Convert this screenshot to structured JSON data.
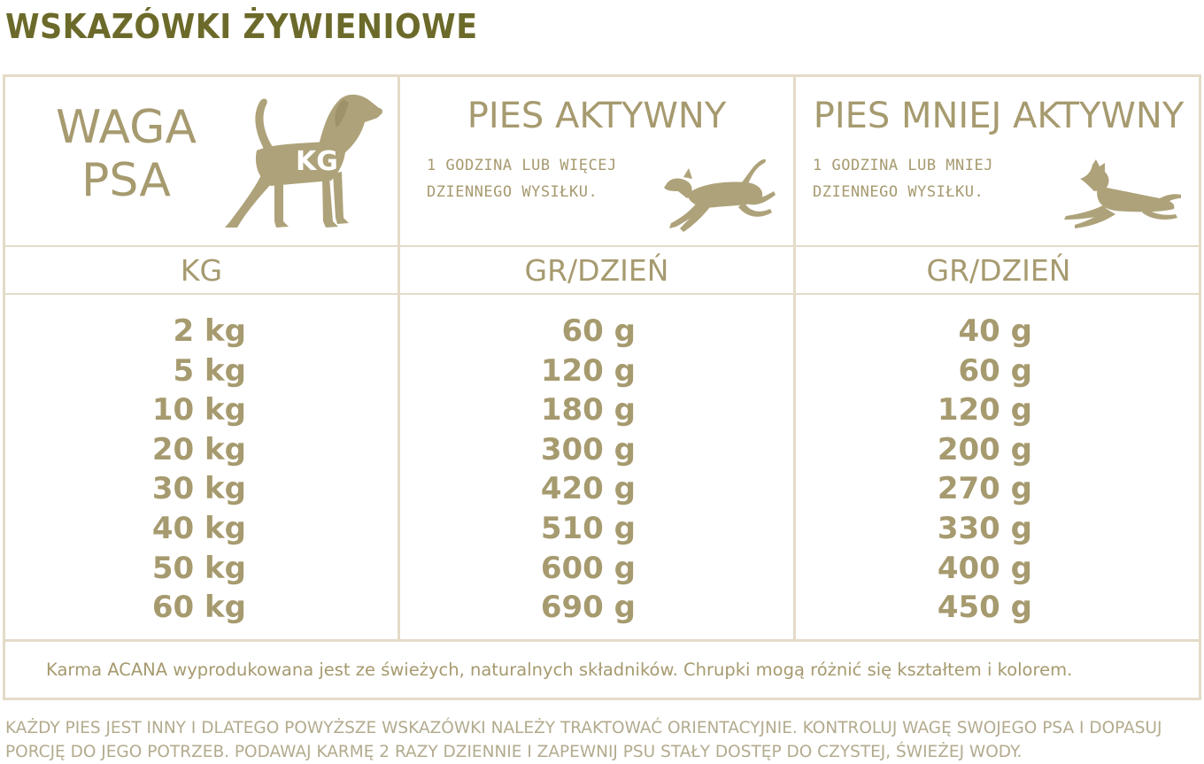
{
  "title": "WSKAZÓWKI ŻYWIENIOWE",
  "weight_column": {
    "header_line1": "WAGA",
    "header_line2": "PSA",
    "icon_label": "KG",
    "unit_header": "KG",
    "values": [
      "2 kg",
      "5 kg",
      "10 kg",
      "20 kg",
      "30 kg",
      "40 kg",
      "50 kg",
      "60 kg"
    ]
  },
  "active_column": {
    "header": "PIES AKTYWNY",
    "note_line1": "1 GODZINA LUB WIĘCEJ",
    "note_line2": "DZIENNEGO WYSIŁKU.",
    "unit_header": "GR/DZIEŃ",
    "values": [
      "60 g",
      "120 g",
      "180 g",
      "300 g",
      "420 g",
      "510 g",
      "600 g",
      "690 g"
    ]
  },
  "less_active_column": {
    "header": "PIES MNIEJ AKTYWNY",
    "note_line1": "1 GODZINA LUB MNIEJ",
    "note_line2": "DZIENNEGO WYSIŁKU.",
    "unit_header": "GR/DZIEŃ",
    "values": [
      "40 g",
      "60 g",
      "120 g",
      "200 g",
      "270 g",
      "330 g",
      "400 g",
      "450 g"
    ]
  },
  "footnote": "Karma ACANA wyprodukowana jest ze świeżych, naturalnych składników. Chrupki mogą różnić się kształtem i kolorem.",
  "disclaimer": "KAŻDY PIES JEST INNY I DLATEGO POWYŻSZE WSKAZÓWKI NALEŻY TRAKTOWAĆ ORIENTACYJNIE. KONTROLUJ WAGĘ SWOJEGO PSA I DOPASUJ PORCJĘ DO JEGO POTRZEB. PODAWAJ KARMĘ 2 RAZY DZIENNIE I ZAPEWNIJ PSU STAŁY DOSTĘP DO CZYSTEJ, ŚWIEŻEJ WODY.",
  "colors": {
    "title": "#6c6a2a",
    "text": "#a69a6f",
    "border": "#e4dbc8",
    "dog_icon": "#aea27a"
  },
  "icons": [
    "standing-dog-icon",
    "running-dog-icon",
    "lying-dog-icon"
  ]
}
